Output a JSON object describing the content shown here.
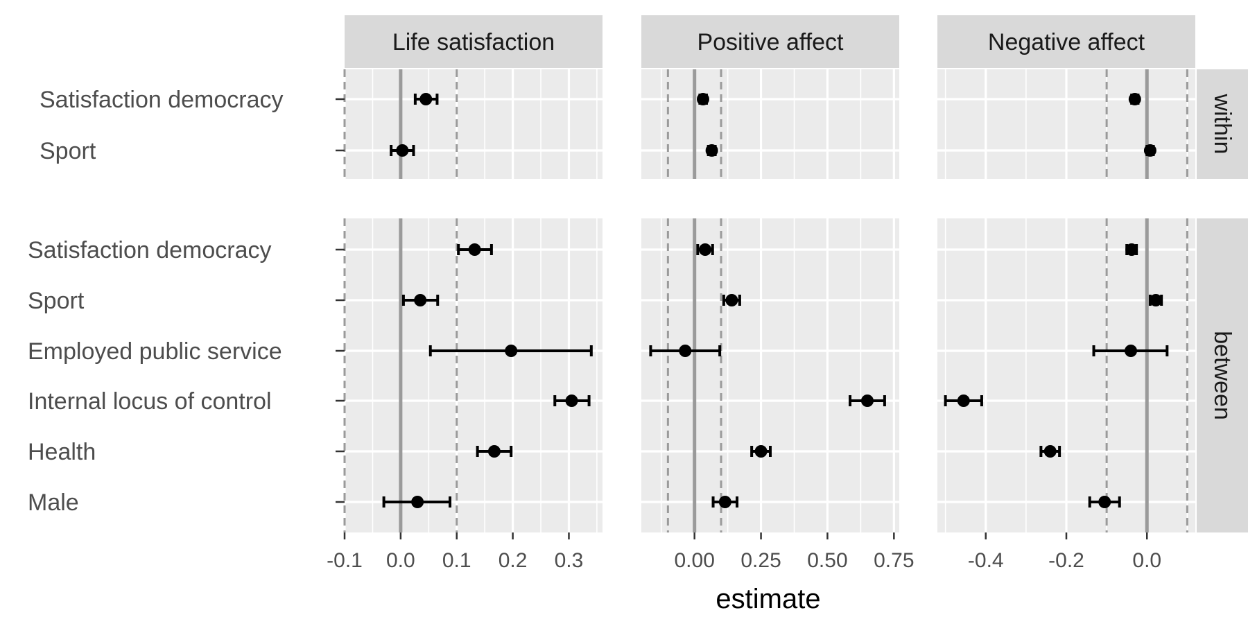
{
  "chart_data": {
    "type": "forest",
    "xlabel": "estimate",
    "panels": [
      {
        "name": "Life satisfaction",
        "xlim": [
          -0.1,
          0.36
        ],
        "ticks": [
          -0.1,
          0.0,
          0.1,
          0.2,
          0.3
        ],
        "tick_labels": [
          "-0.1",
          "0.0",
          "0.1",
          "0.2",
          "0.3"
        ],
        "zero_line": 0.0,
        "dashed_lines": [
          -0.1,
          0.1
        ]
      },
      {
        "name": "Positive affect",
        "xlim": [
          -0.2,
          0.77
        ],
        "ticks": [
          0.0,
          0.25,
          0.5,
          0.75
        ],
        "tick_labels": [
          "0.00",
          "0.25",
          "0.50",
          "0.75"
        ],
        "zero_line": 0.0,
        "dashed_lines": [
          -0.1,
          0.1
        ]
      },
      {
        "name": "Negative affect",
        "xlim": [
          -0.52,
          0.12
        ],
        "ticks": [
          -0.4,
          -0.2,
          0.0
        ],
        "tick_labels": [
          "-0.4",
          "-0.2",
          "0.0"
        ],
        "zero_line": 0.0,
        "dashed_lines": [
          -0.1,
          0.1
        ]
      }
    ],
    "groups": [
      {
        "name": "within",
        "rows": [
          {
            "label": "Satisfaction democracy",
            "values": [
              {
                "est": 0.045,
                "lo": 0.026,
                "hi": 0.065
              },
              {
                "est": 0.032,
                "lo": 0.02,
                "hi": 0.045
              },
              {
                "est": -0.03,
                "lo": -0.038,
                "hi": -0.022
              }
            ]
          },
          {
            "label": "Sport",
            "values": [
              {
                "est": 0.003,
                "lo": -0.017,
                "hi": 0.023
              },
              {
                "est": 0.065,
                "lo": 0.052,
                "hi": 0.078
              },
              {
                "est": 0.008,
                "lo": 0.0,
                "hi": 0.016
              }
            ]
          }
        ]
      },
      {
        "name": "between",
        "rows": [
          {
            "label": "Satisfaction democracy",
            "values": [
              {
                "est": 0.132,
                "lo": 0.103,
                "hi": 0.162
              },
              {
                "est": 0.04,
                "lo": 0.012,
                "hi": 0.068
              },
              {
                "est": -0.038,
                "lo": -0.05,
                "hi": -0.026
              }
            ]
          },
          {
            "label": "Sport",
            "values": [
              {
                "est": 0.035,
                "lo": 0.005,
                "hi": 0.066
              },
              {
                "est": 0.14,
                "lo": 0.11,
                "hi": 0.17
              },
              {
                "est": 0.022,
                "lo": 0.008,
                "hi": 0.036
              }
            ]
          },
          {
            "label": "Employed public service",
            "values": [
              {
                "est": 0.197,
                "lo": 0.053,
                "hi": 0.34
              },
              {
                "est": -0.035,
                "lo": -0.165,
                "hi": 0.095
              },
              {
                "est": -0.04,
                "lo": -0.132,
                "hi": 0.05
              }
            ]
          },
          {
            "label": "Internal locus of control",
            "values": [
              {
                "est": 0.305,
                "lo": 0.275,
                "hi": 0.336
              },
              {
                "est": 0.65,
                "lo": 0.585,
                "hi": 0.715
              },
              {
                "est": -0.455,
                "lo": -0.5,
                "hi": -0.41
              }
            ]
          },
          {
            "label": "Health",
            "values": [
              {
                "est": 0.167,
                "lo": 0.137,
                "hi": 0.197
              },
              {
                "est": 0.25,
                "lo": 0.215,
                "hi": 0.285
              },
              {
                "est": -0.24,
                "lo": -0.263,
                "hi": -0.217
              }
            ]
          },
          {
            "label": "Male",
            "values": [
              {
                "est": 0.03,
                "lo": -0.03,
                "hi": 0.088
              },
              {
                "est": 0.115,
                "lo": 0.07,
                "hi": 0.16
              },
              {
                "est": -0.105,
                "lo": -0.142,
                "hi": -0.068
              }
            ]
          }
        ]
      }
    ]
  }
}
